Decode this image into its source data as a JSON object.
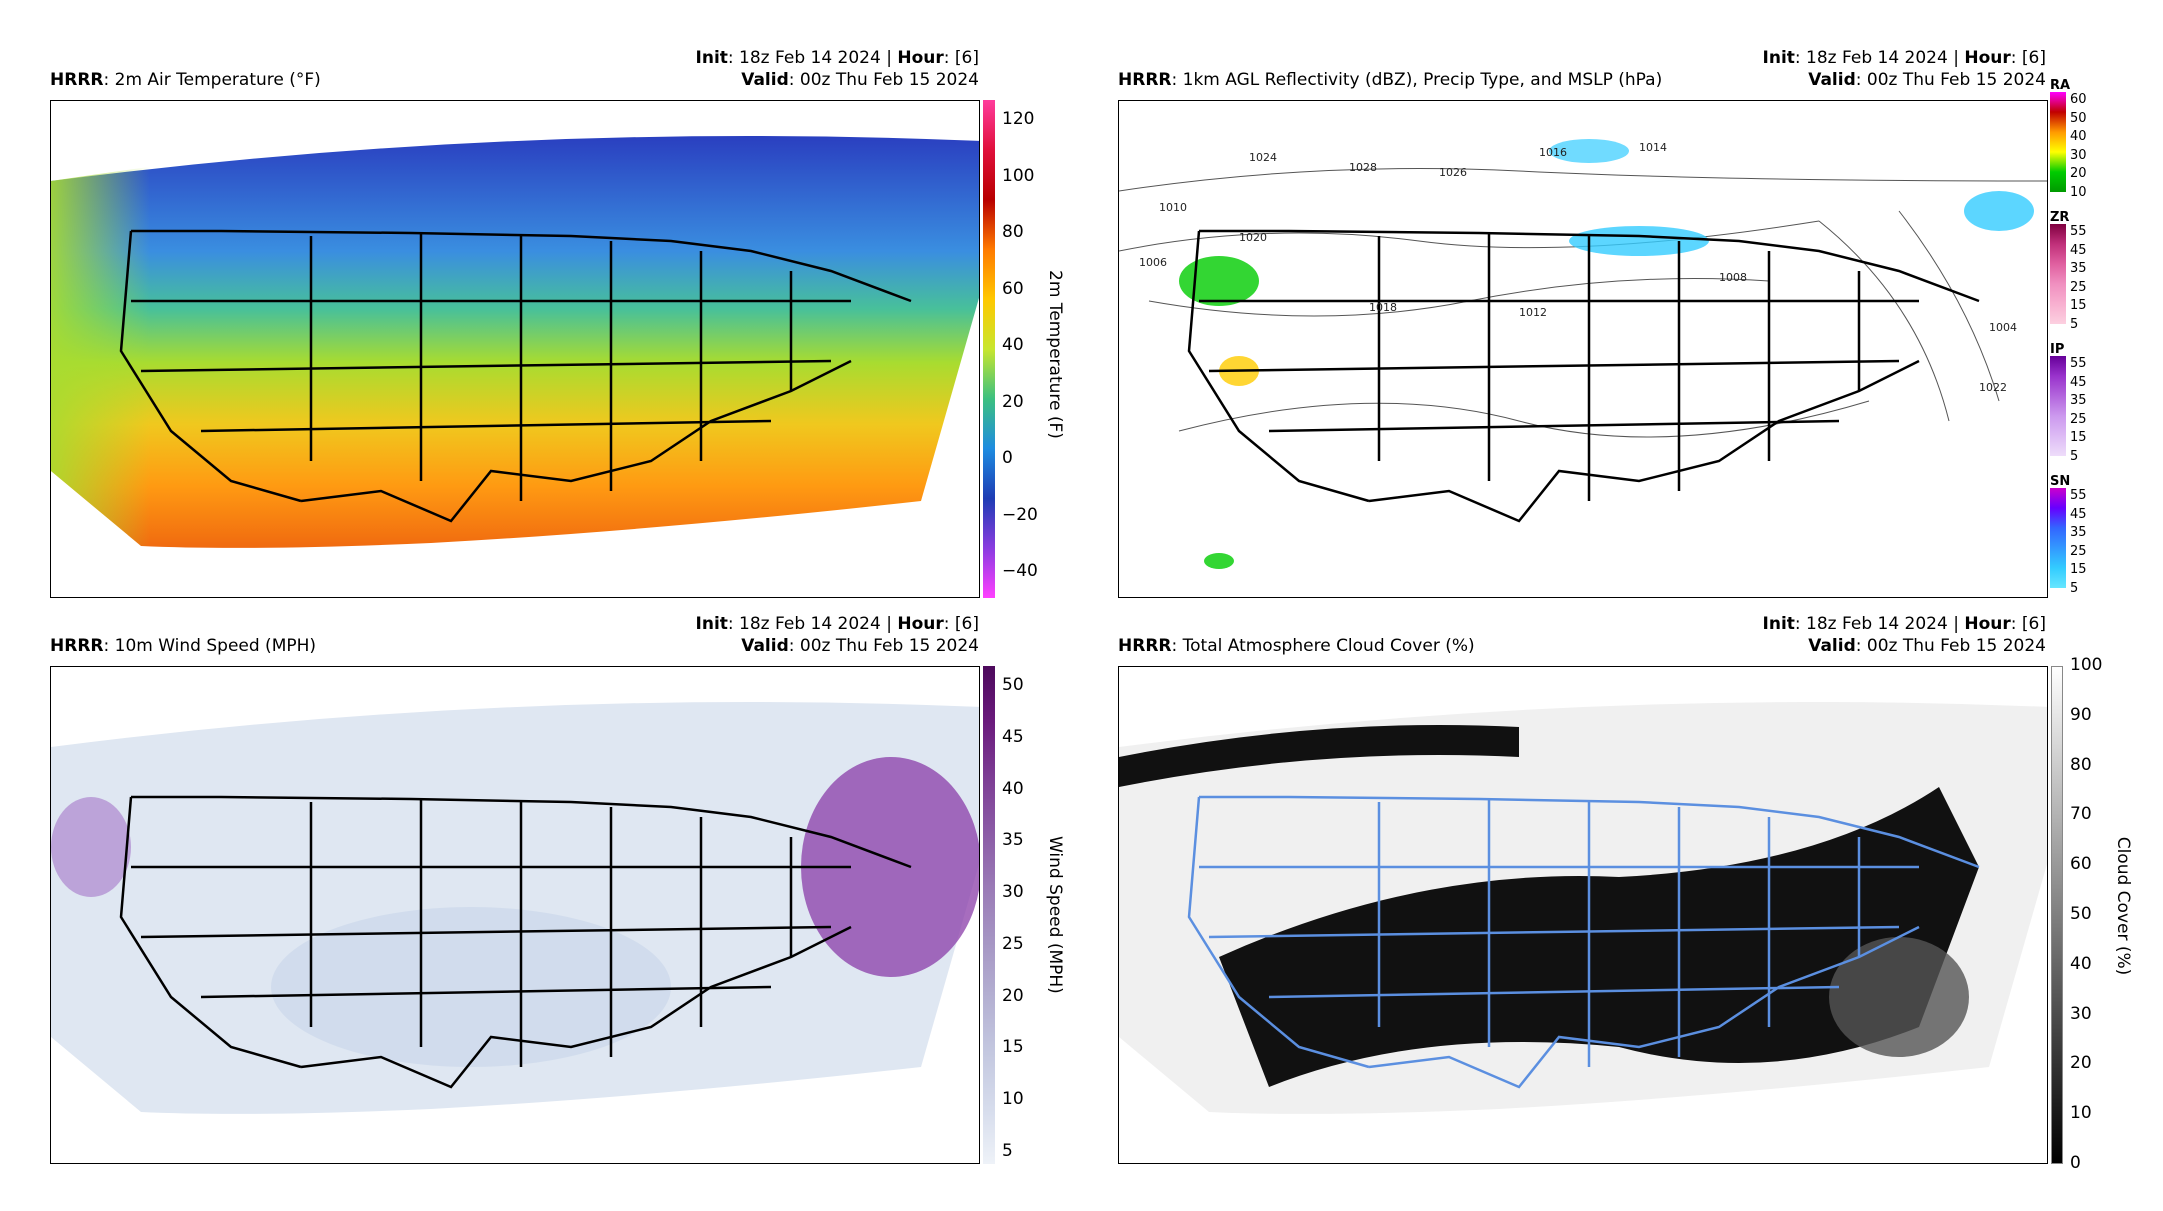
{
  "panels": [
    {
      "id": "temperature",
      "model": "HRRR",
      "title": "2m Air Temperature (°F)",
      "init_label": "Init",
      "init_value": "18z Feb 14 2024",
      "hour_label": "Hour",
      "hour_value": "[6]",
      "valid_label": "Valid",
      "valid_value": "00z Thu Feb 15 2024",
      "colorbar": {
        "label": "2m Temperature (F)",
        "ticks": [
          "120",
          "100",
          "80",
          "60",
          "40",
          "20",
          "0",
          "−20",
          "−40"
        ]
      }
    },
    {
      "id": "reflectivity",
      "model": "HRRR",
      "title": "1km AGL Reflectivity (dBZ), Precip Type, and MSLP (hPa)",
      "init_label": "Init",
      "init_value": "18z Feb 14 2024",
      "hour_label": "Hour",
      "hour_value": "[6]",
      "valid_label": "Valid",
      "valid_value": "00z Thu Feb 15 2024",
      "legends": [
        {
          "code": "RA",
          "ticks": [
            "60",
            "50",
            "40",
            "30",
            "20",
            "10"
          ],
          "colors": [
            "#ff00ff",
            "#c00000",
            "#ff9900",
            "#ffff00",
            "#00cc00",
            "#009900"
          ]
        },
        {
          "code": "ZR",
          "ticks": [
            "55",
            "45",
            "35",
            "25",
            "15",
            "5"
          ],
          "colors": [
            "#800040",
            "#c0307a",
            "#e060a0",
            "#f090c0",
            "#f8b0d0",
            "#fcd0e0"
          ]
        },
        {
          "code": "IP",
          "ticks": [
            "55",
            "45",
            "35",
            "25",
            "15",
            "5"
          ],
          "colors": [
            "#660099",
            "#9933cc",
            "#b366dd",
            "#cc99ee",
            "#ddbbf5",
            "#eeddfa"
          ]
        },
        {
          "code": "SN",
          "ticks": [
            "55",
            "45",
            "35",
            "25",
            "15",
            "5"
          ],
          "colors": [
            "#cc00cc",
            "#6600ff",
            "#3366ff",
            "#3399ff",
            "#33ccff",
            "#66e6ff"
          ]
        }
      ],
      "isobars": [
        "1024",
        "1028",
        "1016",
        "1014",
        "1026",
        "1010",
        "1006",
        "1020",
        "1022",
        "1018",
        "1012",
        "1008",
        "1004"
      ]
    },
    {
      "id": "wind",
      "model": "HRRR",
      "title": "10m Wind Speed (MPH)",
      "init_label": "Init",
      "init_value": "18z Feb 14 2024",
      "hour_label": "Hour",
      "hour_value": "[6]",
      "valid_label": "Valid",
      "valid_value": "00z Thu Feb 15 2024",
      "colorbar": {
        "label": "Wind Speed (MPH)",
        "ticks": [
          "50",
          "45",
          "40",
          "35",
          "30",
          "25",
          "20",
          "15",
          "10",
          "5"
        ]
      }
    },
    {
      "id": "cloud",
      "model": "HRRR",
      "title": "Total Atmosphere Cloud Cover (%)",
      "init_label": "Init",
      "init_value": "18z Feb 14 2024",
      "hour_label": "Hour",
      "hour_value": "[6]",
      "valid_label": "Valid",
      "valid_value": "00z Thu Feb 15 2024",
      "colorbar": {
        "label": "Cloud Cover (%)",
        "ticks": [
          "100",
          "90",
          "80",
          "70",
          "60",
          "50",
          "40",
          "30",
          "20",
          "10",
          "0"
        ]
      }
    }
  ],
  "colors": {
    "temp_cold": "#1e3cb4",
    "temp_mid": "#4aa3d8",
    "temp_warm": "#c8e62e",
    "temp_hot": "#ff8c00",
    "state_lines": "#000000",
    "cloud_lines": "#5b8fe0",
    "wind_high": "#7a1a8c"
  }
}
